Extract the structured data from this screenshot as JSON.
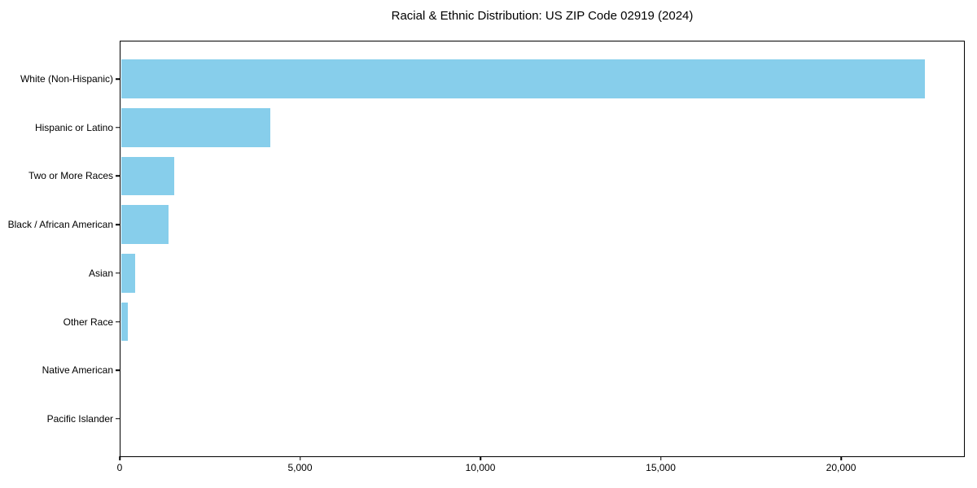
{
  "chart_data": {
    "type": "bar",
    "orientation": "horizontal",
    "title": "Racial & Ethnic Distribution: US ZIP Code 02919 (2024)",
    "categories": [
      "White (Non-Hispanic)",
      "Hispanic or Latino",
      "Two or More Races",
      "Black / African American",
      "Asian",
      "Other Race",
      "Native American",
      "Pacific Islander"
    ],
    "values": [
      22325,
      4185,
      1510,
      1355,
      420,
      230,
      20,
      10
    ],
    "xlabel": "",
    "ylabel": "",
    "xlim": [
      0,
      23430
    ],
    "xticks": [
      0,
      5000,
      10000,
      15000,
      20000
    ],
    "xtick_labels": [
      "0",
      "5,000",
      "10,000",
      "15,000",
      "20,000"
    ],
    "bar_color": "#87CEEB",
    "axis_color": "#000000",
    "background_color": "#FFFFFF",
    "grid": false,
    "legend": "none"
  }
}
